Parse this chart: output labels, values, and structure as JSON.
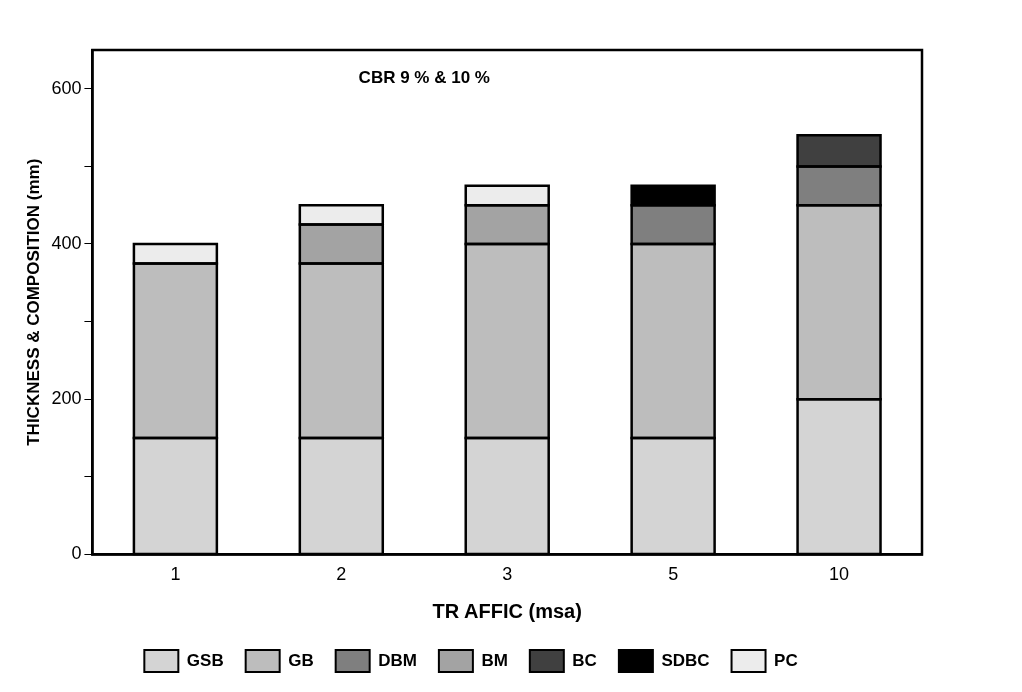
{
  "chart_data": {
    "type": "bar",
    "stacked": true,
    "xlabel": "TR AFFIC (msa)",
    "ylabel": "THICKNESS & COMPOSITION (mm)",
    "categories": [
      "1",
      "2",
      "3",
      "5",
      "10"
    ],
    "series": [
      {
        "name": "GSB",
        "color": "#d4d4d4",
        "values": [
          150,
          150,
          150,
          150,
          200
        ]
      },
      {
        "name": "GB",
        "color": "#bdbdbd",
        "values": [
          225,
          225,
          250,
          250,
          250
        ]
      },
      {
        "name": "DBM",
        "color": "#7f7f7f",
        "values": [
          null,
          null,
          null,
          50,
          50
        ]
      },
      {
        "name": "BM",
        "color": "#a3a3a3",
        "values": [
          null,
          50,
          50,
          null,
          null
        ]
      },
      {
        "name": "BC",
        "color": "#404040",
        "values": [
          null,
          null,
          null,
          null,
          40
        ]
      },
      {
        "name": "SDBC",
        "color": "#000000",
        "values": [
          null,
          null,
          null,
          25,
          null
        ]
      },
      {
        "name": "PC",
        "color": "#ececec",
        "values": [
          25,
          25,
          25,
          null,
          null
        ]
      }
    ],
    "ylim": [
      0,
      650
    ],
    "yticks": [
      0,
      {
        "value": 100,
        "label": null
      },
      200,
      {
        "value": 300,
        "label": null
      },
      400,
      {
        "value": 500,
        "label": null
      },
      600
    ],
    "grid": false,
    "legend": "bottom",
    "annotations": [
      "CBR 9 % & 10 %"
    ]
  }
}
